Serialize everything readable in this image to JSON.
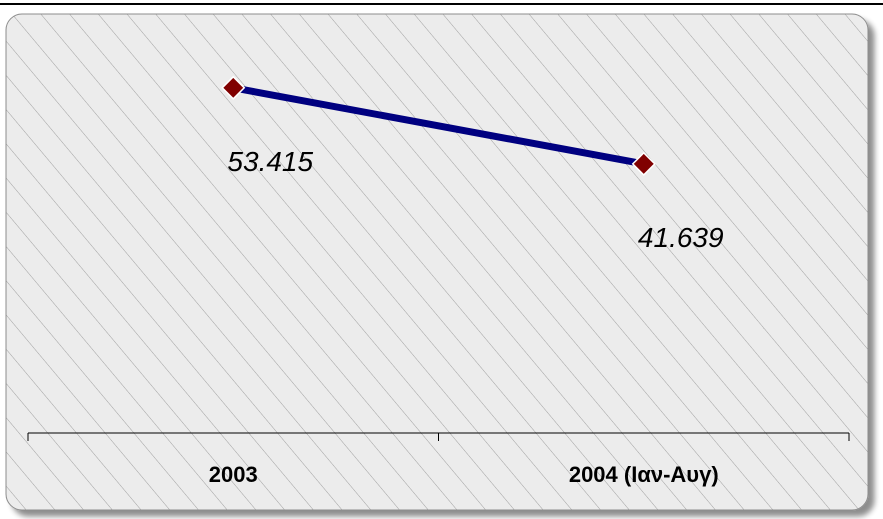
{
  "chart_data": {
    "type": "line",
    "categories": [
      "2003",
      "2004"
    ],
    "category_labels": [
      "2003",
      "2004    (Ιαν-Αυγ)"
    ],
    "values": [
      53415,
      41639
    ],
    "value_labels": [
      "53.415",
      "41.639"
    ],
    "title": "",
    "xlabel": "",
    "ylabel": "",
    "ylim": [
      0,
      67000
    ],
    "grid": false,
    "legend": "none",
    "colors": {
      "line": "#000080",
      "marker": "#800000",
      "background": "#e8e8e8",
      "hatch": "#9a9a9a"
    }
  }
}
